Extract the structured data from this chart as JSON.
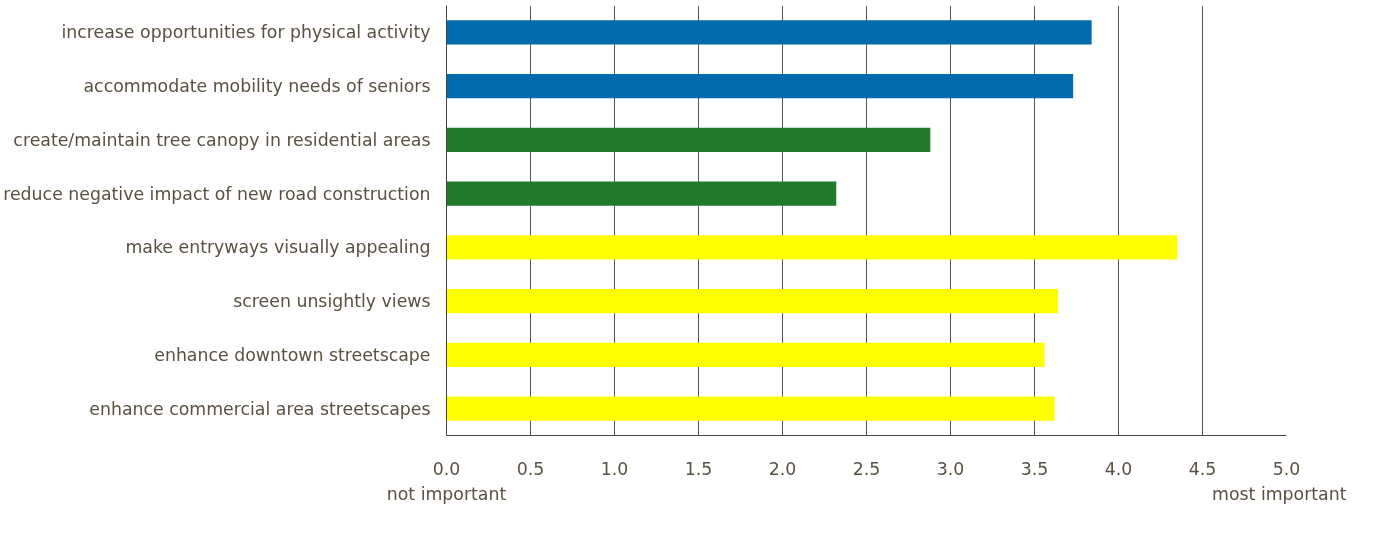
{
  "chart_data": {
    "type": "bar",
    "orientation": "horizontal",
    "categories": [
      "increase opportunities for physical activity",
      "accommodate mobility needs of seniors",
      "create/maintain tree canopy in residential areas",
      "reduce negative impact of new road construction",
      "make entryways visually appealing",
      "screen unsightly views",
      "enhance downtown streetscape",
      "enhance commercial area streetscapes"
    ],
    "values": [
      3.84,
      3.73,
      2.88,
      2.32,
      4.35,
      3.64,
      3.56,
      3.62
    ],
    "colors": [
      "#006bab",
      "#006bab",
      "#1f7a2a",
      "#1f7a2a",
      "#ffff00",
      "#ffff00",
      "#ffff00",
      "#ffff00"
    ],
    "xlim": [
      0,
      5
    ],
    "xticks": [
      {
        "value": 0,
        "label": "0.0"
      },
      {
        "value": 0.5,
        "label": "0.5"
      },
      {
        "value": 1,
        "label": "1.0"
      },
      {
        "value": 1.5,
        "label": "1.5"
      },
      {
        "value": 2,
        "label": "2.0"
      },
      {
        "value": 2.5,
        "label": "2.5"
      },
      {
        "value": 3,
        "label": "3.0"
      },
      {
        "value": 3.5,
        "label": "3.5"
      },
      {
        "value": 4,
        "label": "4.0"
      },
      {
        "value": 4.5,
        "label": "4.5"
      },
      {
        "value": 5,
        "label": "5.0"
      }
    ],
    "grid": "x",
    "annotations": [
      "not important",
      "most important"
    ]
  }
}
